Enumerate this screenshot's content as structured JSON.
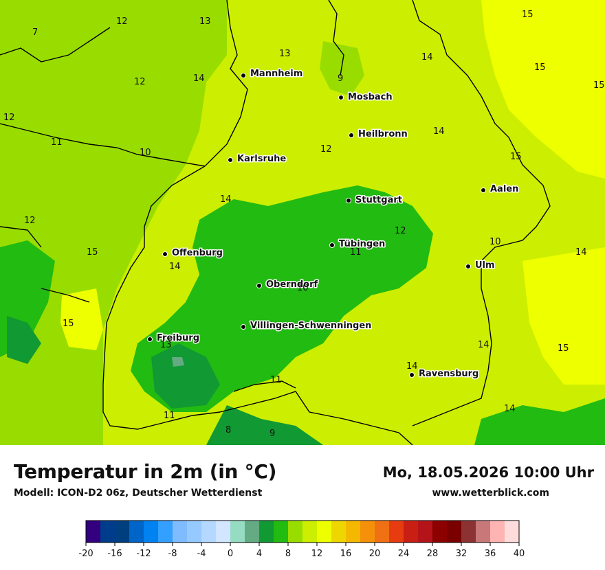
{
  "header": {
    "title": "Temperatur in 2m (in °C)",
    "model": "Modell: ICON-D2 06z, Deutscher Wetterdienst",
    "datetime": "Mo, 18.05.2026 10:00 Uhr",
    "website": "www.wetterblick.com"
  },
  "cities": [
    {
      "name": "Mannheim"
    },
    {
      "name": "Mosbach"
    },
    {
      "name": "Heilbronn"
    },
    {
      "name": "Karlsruhe"
    },
    {
      "name": "Stuttgart"
    },
    {
      "name": "Aalen"
    },
    {
      "name": "Tübingen"
    },
    {
      "name": "Offenburg"
    },
    {
      "name": "Ulm"
    },
    {
      "name": "Oberndorf"
    },
    {
      "name": "Villingen-Schwenningen"
    },
    {
      "name": "Freiburg"
    },
    {
      "name": "Ravensburg"
    }
  ],
  "isolines": [
    "7",
    "12",
    "13",
    "13",
    "14",
    "15",
    "15",
    "15",
    "12",
    "14",
    "9",
    "12",
    "11",
    "10",
    "12",
    "14",
    "15",
    "14",
    "12",
    "12",
    "10",
    "14",
    "15",
    "11",
    "14",
    "10",
    "15",
    "13",
    "14",
    "15",
    "11",
    "14",
    "11",
    "8",
    "9"
  ],
  "legend": {
    "ticks": [
      "-20",
      "-16",
      "-12",
      "-8",
      "-4",
      "0",
      "4",
      "8",
      "12",
      "16",
      "20",
      "24",
      "28",
      "32",
      "36",
      "40"
    ],
    "colors": [
      "#33007f",
      "#003c8c",
      "#003f7f",
      "#0065c8",
      "#0082f0",
      "#33a0ff",
      "#7fbcff",
      "#96c9ff",
      "#b4d8ff",
      "#d2e6ff",
      "#96dcc3",
      "#64aa82",
      "#119933",
      "#22bb11",
      "#99dd00",
      "#ccee00",
      "#eeff00",
      "#eed600",
      "#f5b800",
      "#f5900a",
      "#f07014",
      "#e63c0f",
      "#c81e14",
      "#b41419",
      "#8c0000",
      "#7a0000",
      "#8c3232",
      "#c87878",
      "#ffb4b4",
      "#ffdcdc"
    ]
  }
}
